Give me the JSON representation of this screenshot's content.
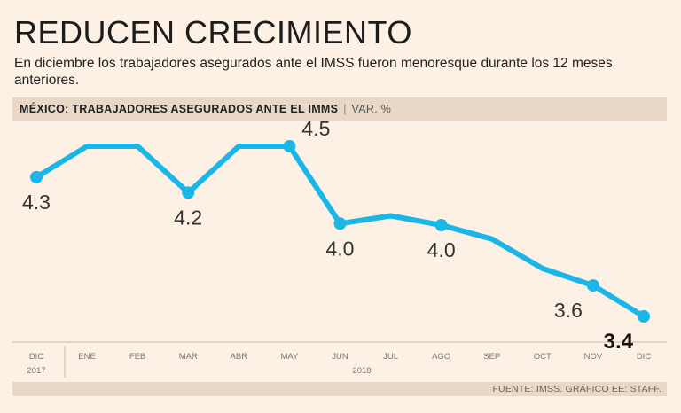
{
  "header": {
    "title": "REDUCEN CRECIMIENTO",
    "subtitle": "En diciembre los trabajadores asegurados ante el IMSS fueron menoresque durante los 12 meses anteriores.",
    "chart_title": "MÉXICO: TRABAJADORES ASEGURADOS ANTE EL IMMS",
    "separator": "|",
    "unit": "VAR. %"
  },
  "footer": {
    "source": "FUENTE: IMSS. GRÁFICO EE: STAFF."
  },
  "colors": {
    "line": "#1bb6e8",
    "background": "#fdf1e5",
    "band": "#ead8c6"
  },
  "chart_data": {
    "type": "line",
    "title": "MÉXICO: TRABAJADORES ASEGURADOS ANTE EL IMMS",
    "ylabel": "VAR. %",
    "xlabel": "",
    "categories": [
      "DIC",
      "ENE",
      "FEB",
      "MAR",
      "ABR",
      "MAY",
      "JUN",
      "JUL",
      "AGO",
      "SEP",
      "OCT",
      "NOV",
      "DIC"
    ],
    "year_labels": [
      "2017",
      "2018"
    ],
    "series": [
      {
        "name": "VAR. %",
        "values": [
          4.3,
          4.5,
          4.5,
          4.2,
          4.5,
          4.5,
          4.0,
          4.05,
          3.99,
          3.9,
          3.71,
          3.6,
          3.4
        ]
      }
    ],
    "markers": [
      0,
      3,
      5,
      6,
      8,
      11,
      12
    ],
    "data_labels": [
      {
        "index": 0,
        "text": "4.3",
        "pos": "below"
      },
      {
        "index": 3,
        "text": "4.2",
        "pos": "below"
      },
      {
        "index": 5,
        "text": "4.5",
        "pos": "above-right"
      },
      {
        "index": 6,
        "text": "4.0",
        "pos": "below"
      },
      {
        "index": 8,
        "text": "4.0",
        "pos": "below"
      },
      {
        "index": 11,
        "text": "3.6",
        "pos": "below-left"
      },
      {
        "index": 12,
        "text": "3.4",
        "pos": "below-left",
        "bold": true
      }
    ],
    "ylim": [
      3.0,
      4.8
    ]
  }
}
